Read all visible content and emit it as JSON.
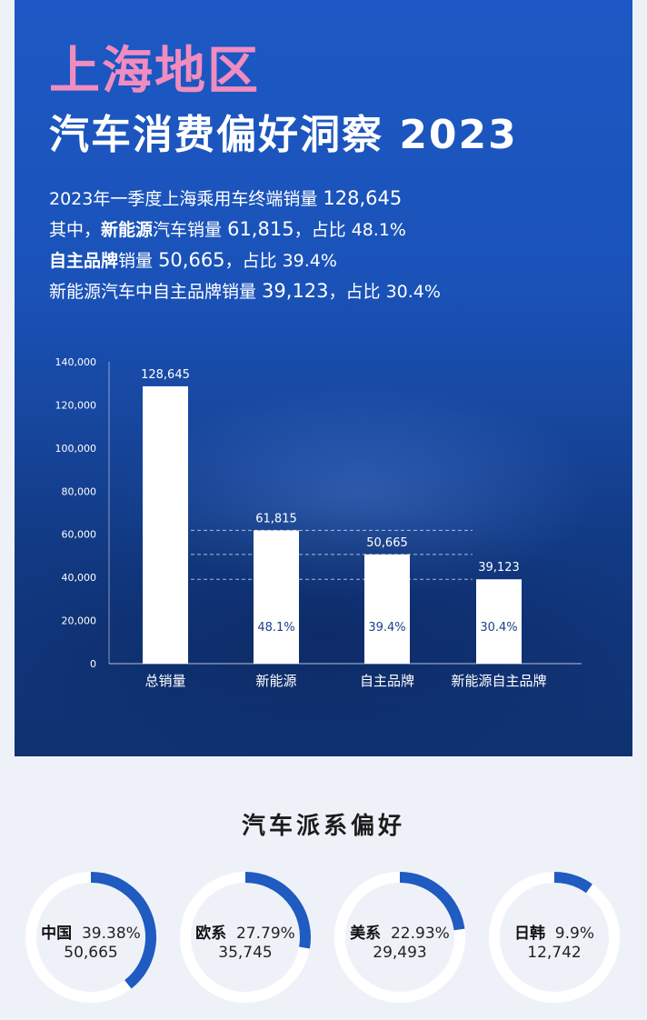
{
  "header": {
    "title_line1": "上海地区",
    "title_line2": "汽车消费偏好洞察 2023"
  },
  "stats": [
    {
      "pre": "2023年一季度上海乘用车终端销量 ",
      "bold": "",
      "mid": "",
      "value": "128,645",
      "post": ""
    },
    {
      "pre": "其中，",
      "bold": "新能源",
      "mid": "汽车销量 ",
      "value": "61,815",
      "post": "，占比 48.1%"
    },
    {
      "pre": "",
      "bold": "自主品牌",
      "mid": "销量 ",
      "value": "50,665",
      "post": "，占比 39.4%"
    },
    {
      "pre": "新能源汽车中自主品牌销量 ",
      "bold": "",
      "mid": "",
      "value": "39,123",
      "post": "，占比 30.4%"
    }
  ],
  "chart_data": [
    {
      "type": "bar",
      "categories": [
        "总销量",
        "新能源",
        "自主品牌",
        "新能源自主品牌"
      ],
      "values": [
        128645,
        61815,
        50665,
        39123
      ],
      "value_labels": [
        "128,645",
        "61,815",
        "50,665",
        "39,123"
      ],
      "percent_labels": [
        "",
        "48.1%",
        "39.4%",
        "30.4%"
      ],
      "ylim": [
        0,
        140000
      ],
      "yticks": [
        0,
        20000,
        40000,
        60000,
        80000,
        100000,
        120000,
        140000
      ],
      "ytick_labels": [
        "0",
        "20,000",
        "40,000",
        "60,000",
        "80,000",
        "100,000",
        "120,000",
        "140,000"
      ],
      "reference_lines": [
        61815,
        50665,
        39123
      ],
      "grid": false,
      "colors": {
        "bar": "#ffffff",
        "axis_text": "#ffffff"
      }
    },
    {
      "type": "pie",
      "title": "汽车派系偏好",
      "items": [
        {
          "name": "中国",
          "percent": 39.38,
          "percent_label": "39.38%",
          "value": "50,665"
        },
        {
          "name": "欧系",
          "percent": 27.79,
          "percent_label": "27.79%",
          "value": "35,745"
        },
        {
          "name": "美系",
          "percent": 22.93,
          "percent_label": "22.93%",
          "value": "29,493"
        },
        {
          "name": "日韩",
          "percent": 9.9,
          "percent_label": "9.9%",
          "value": "12,742"
        }
      ],
      "colors": {
        "arc": "#1f5bc0",
        "track": "#ffffff"
      }
    }
  ]
}
